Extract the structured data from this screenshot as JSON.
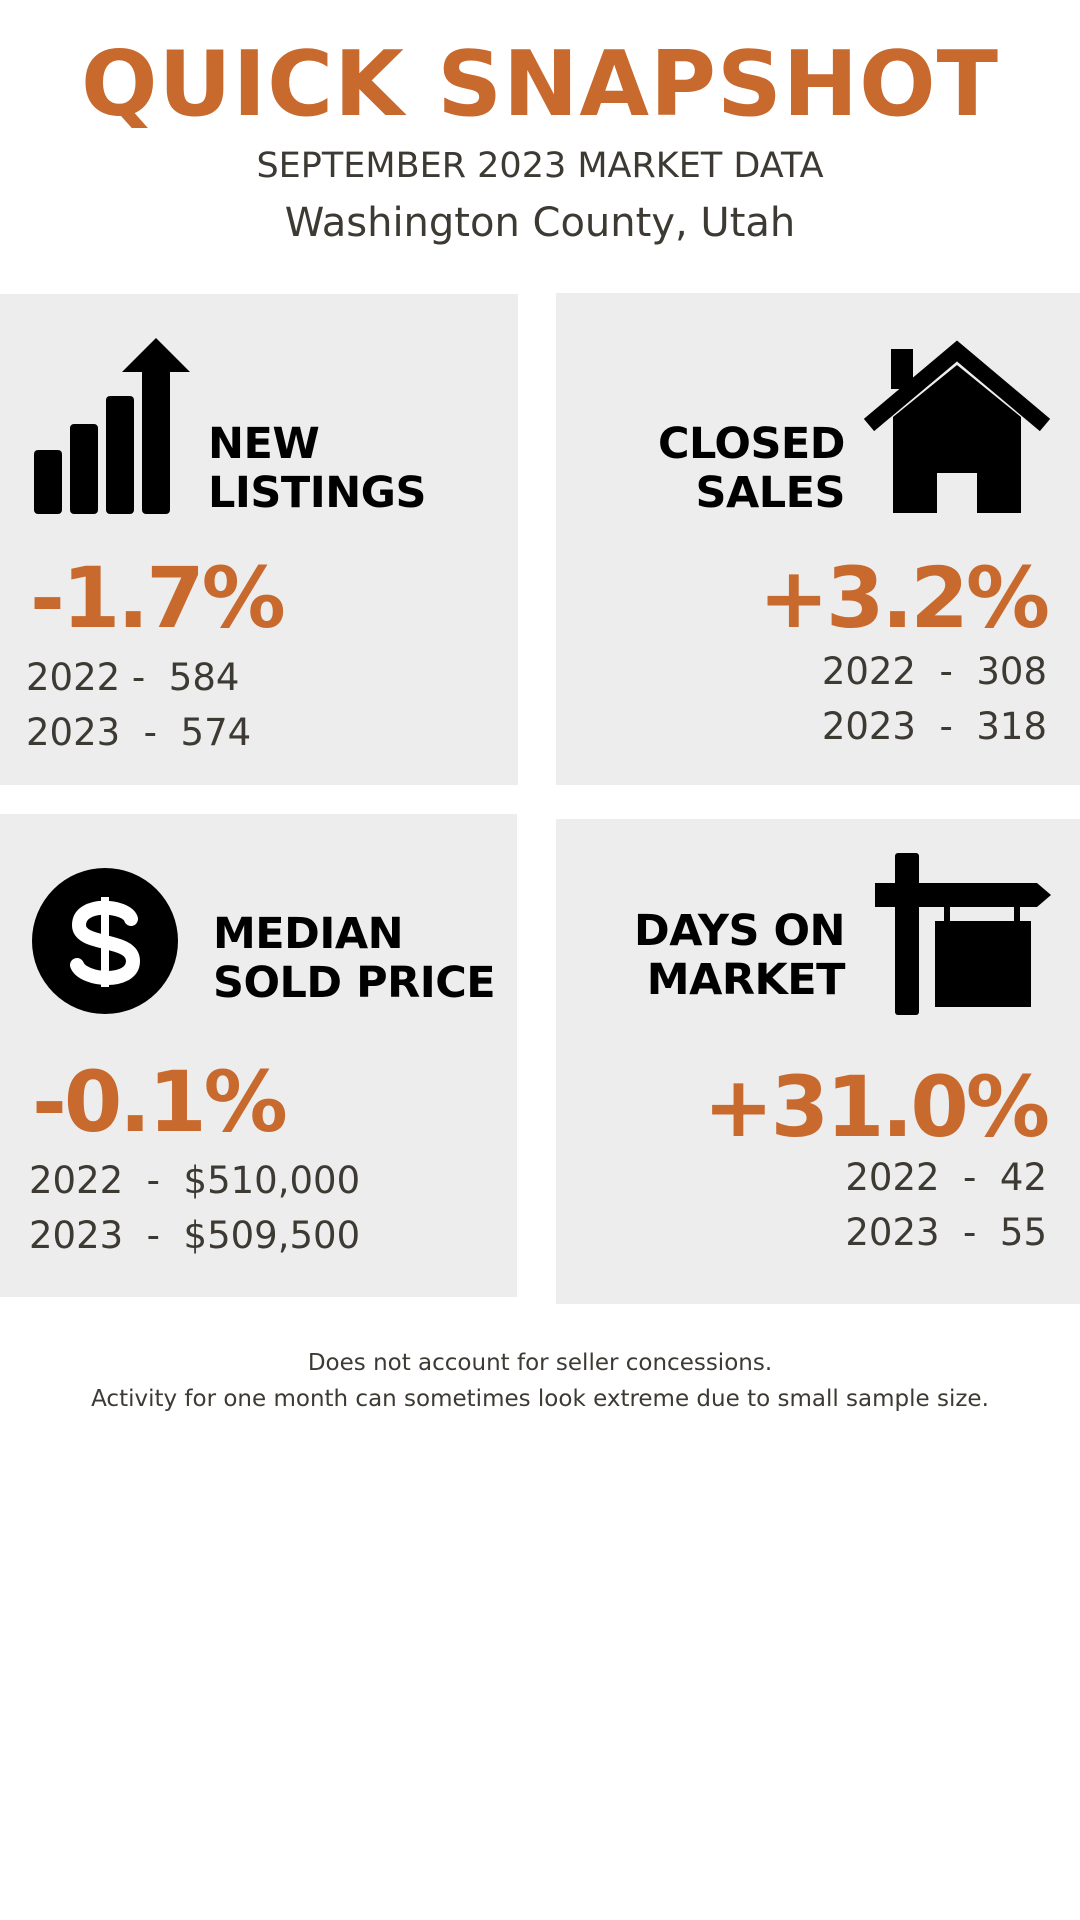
{
  "header": {
    "title": "QUICK SNAPSHOT",
    "subtitle": "SEPTEMBER 2023 MARKET DATA",
    "location": "Washington County, Utah"
  },
  "cards": [
    {
      "title_lines": [
        "NEW",
        "LISTINGS"
      ],
      "change": "-1.7%",
      "rows": [
        "2022 -  584",
        "2023  -  574"
      ]
    },
    {
      "title_lines": [
        "CLOSED",
        "SALES"
      ],
      "change": "+3.2%",
      "rows": [
        "2022  -  308",
        "2023  -  318"
      ]
    },
    {
      "title_lines": [
        "MEDIAN",
        "SOLD PRICE"
      ],
      "change": "-0.1%",
      "rows": [
        "2022  -  $510,000",
        "2023  -  $509,500"
      ]
    },
    {
      "title_lines": [
        "DAYS ON",
        "MARKET"
      ],
      "change": "+31.0%",
      "rows": [
        "2022  -  42",
        "2023  -  55"
      ]
    }
  ],
  "footer": [
    "Does not account for seller concessions.",
    "Activity for one month can sometimes look extreme due to small sample size."
  ]
}
